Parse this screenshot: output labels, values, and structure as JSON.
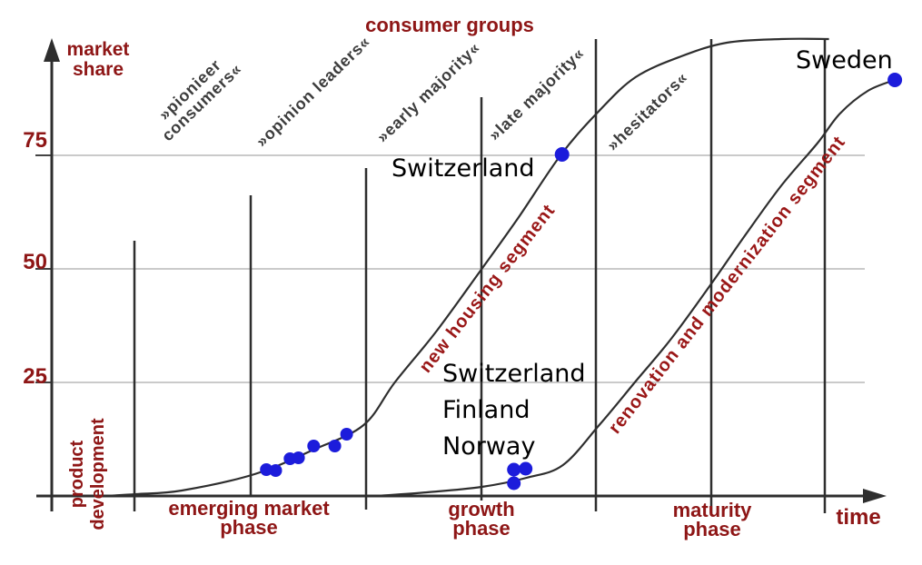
{
  "header": {
    "title": "consumer groups"
  },
  "axes": {
    "y_label_lines": [
      "market",
      "share"
    ],
    "x_label": "time",
    "y_ticks": [
      "75",
      "50",
      "25"
    ],
    "origin_label_lines": [
      "product",
      "development"
    ]
  },
  "groups": [
    {
      "lines": [
        "»pionieer",
        "consumers«"
      ]
    },
    {
      "lines": [
        "»opinion leaders«"
      ]
    },
    {
      "lines": [
        "»early majority«"
      ]
    },
    {
      "lines": [
        "»late majority«"
      ]
    },
    {
      "lines": [
        "»hesitators«"
      ]
    }
  ],
  "segments": [
    "new housing segment",
    "renovation and modernization segment"
  ],
  "phases": [
    [
      "emerging market",
      "phase"
    ],
    [
      "growth",
      "phase"
    ],
    [
      "maturity",
      "phase"
    ]
  ],
  "annotations": {
    "upper_mid": "Switzerland",
    "lower_group": [
      "Switzerland",
      "Finland",
      "Norway"
    ],
    "top_right": "Sweden"
  },
  "colors": {
    "accent_red": "#8e1616",
    "segment_red": "#9a1717",
    "label_gray": "#3d3d3d",
    "line_black": "#2e2e2e",
    "gridline_gray": "#b9b9b9",
    "dot_blue": "#1c1cdb"
  },
  "chart_data": {
    "type": "line",
    "title": "consumer groups",
    "xlabel": "time",
    "ylabel": "market share",
    "ylim": [
      0,
      105
    ],
    "xlim": [
      0,
      100
    ],
    "y_gridlines": [
      25,
      50,
      75
    ],
    "grid": "horizontal only",
    "x_unit": "relative time (unlabeled axis)",
    "series": [
      {
        "name": "new housing segment",
        "points": [
          [
            6.2,
            0
          ],
          [
            10,
            0.4
          ],
          [
            15.4,
            1.2
          ],
          [
            24,
            4.8
          ],
          [
            31,
            10.2
          ],
          [
            36.9,
            15.6
          ],
          [
            40.6,
            25
          ],
          [
            45.5,
            36.2
          ],
          [
            50.9,
            50
          ],
          [
            55.2,
            61.2
          ],
          [
            60.3,
            75.2
          ],
          [
            64.8,
            84.8
          ],
          [
            69.1,
            92.2
          ],
          [
            74.5,
            96.8
          ],
          [
            79.9,
            99.8
          ],
          [
            86.3,
            100.6
          ],
          [
            92,
            100.6
          ]
        ]
      },
      {
        "name": "renovation and modernization segment",
        "points": [
          [
            38.5,
            0
          ],
          [
            44.4,
            0.8
          ],
          [
            50.9,
            2
          ],
          [
            56.2,
            4
          ],
          [
            60.5,
            6.8
          ],
          [
            64.8,
            15.6
          ],
          [
            69.1,
            25.2
          ],
          [
            73.4,
            34.8
          ],
          [
            78.1,
            46.8
          ],
          [
            82,
            57.2
          ],
          [
            86.3,
            68.2
          ],
          [
            90.6,
            77.6
          ],
          [
            93.3,
            84.2
          ],
          [
            96.6,
            89.2
          ],
          [
            99.8,
            91.6
          ]
        ]
      }
    ],
    "scatter": [
      {
        "name": "emerging-market-cluster",
        "r": 7,
        "points": [
          [
            25.4,
            5.8
          ],
          [
            26.5,
            5.6
          ],
          [
            28.2,
            8.2
          ],
          [
            29.2,
            8.4
          ],
          [
            31,
            11
          ],
          [
            33.5,
            11
          ],
          [
            34.9,
            13.6
          ]
        ]
      },
      {
        "name": "growth-phase-trio-Switzerland-Finland-Norway",
        "r": 7.5,
        "points": [
          [
            54.7,
            5.8
          ],
          [
            56.1,
            6
          ],
          [
            54.7,
            2.8
          ]
        ]
      },
      {
        "name": "Switzerland",
        "r": 8,
        "points": [
          [
            60.4,
            75.2
          ]
        ]
      },
      {
        "name": "Sweden",
        "r": 8,
        "points": [
          [
            99.8,
            91.6
          ]
        ]
      }
    ],
    "annotations": [
      {
        "text": "Switzerland",
        "series": "new housing segment",
        "at": [
          60.4,
          75.2
        ]
      },
      {
        "text": "Switzerland Finland Norway",
        "series": "renovation and modernization segment",
        "at": [
          55,
          5
        ]
      },
      {
        "text": "Sweden",
        "series": "renovation and modernization segment",
        "at": [
          99.8,
          91.6
        ]
      }
    ],
    "group_boundaries_t": [
      9.8,
      23.5,
      37.2,
      50.9,
      64.4,
      78.1,
      91.5
    ]
  }
}
